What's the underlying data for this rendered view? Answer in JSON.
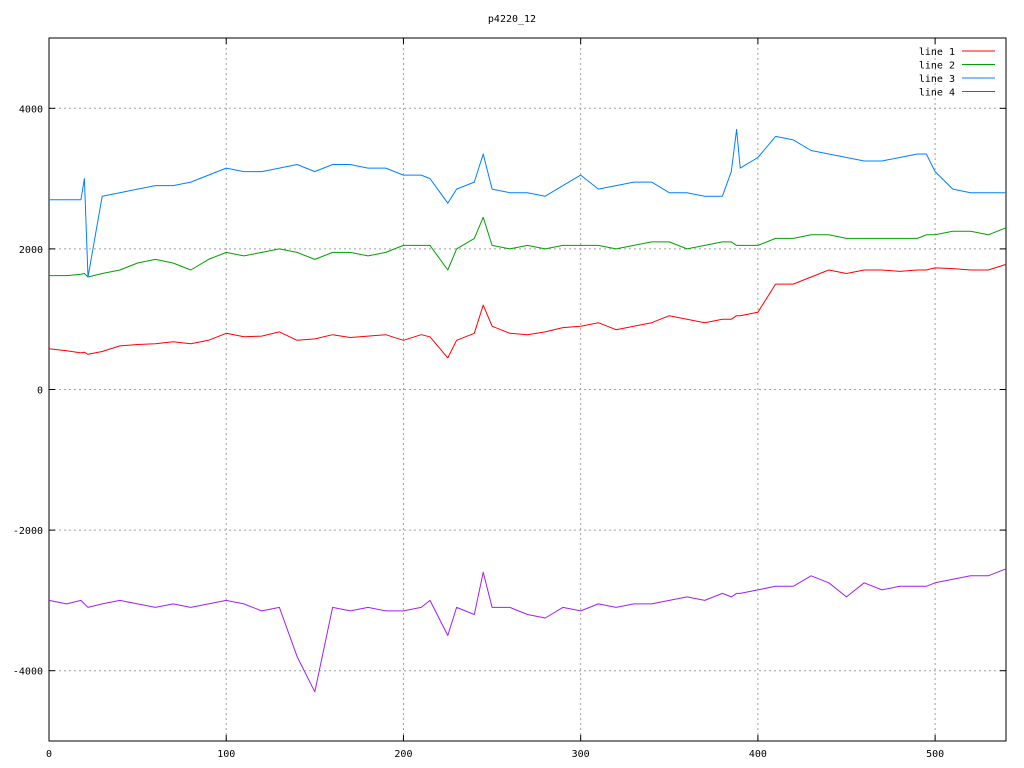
{
  "chart_data": {
    "type": "line",
    "title": "p4220_12",
    "xlabel": "",
    "ylabel": "",
    "xlim": [
      0,
      540
    ],
    "ylim": [
      -5000,
      5000
    ],
    "x_ticks": [
      0,
      100,
      200,
      300,
      400,
      500
    ],
    "y_ticks": [
      -4000,
      -2000,
      0,
      2000,
      4000
    ],
    "y_tick_labels": [
      "-4000",
      "-2000",
      "0",
      "2000",
      "4000"
    ],
    "grid": true,
    "legend_position": "top-right",
    "x": [
      0,
      10,
      18,
      20,
      22,
      30,
      40,
      50,
      60,
      70,
      80,
      90,
      100,
      110,
      120,
      130,
      140,
      150,
      160,
      170,
      180,
      190,
      200,
      210,
      215,
      225,
      230,
      240,
      245,
      250,
      260,
      270,
      280,
      290,
      300,
      310,
      320,
      330,
      340,
      350,
      360,
      370,
      380,
      385,
      388,
      390,
      400,
      410,
      420,
      430,
      440,
      450,
      460,
      470,
      480,
      490,
      495,
      500,
      510,
      520,
      530,
      540
    ],
    "series": [
      {
        "name": "line 1",
        "color": "#ff0000",
        "values": [
          580,
          550,
          520,
          530,
          500,
          540,
          620,
          640,
          650,
          680,
          650,
          700,
          800,
          750,
          760,
          820,
          700,
          720,
          780,
          740,
          760,
          780,
          700,
          780,
          750,
          450,
          700,
          800,
          1200,
          900,
          800,
          780,
          820,
          880,
          900,
          950,
          850,
          900,
          950,
          1050,
          1000,
          950,
          1000,
          1000,
          1050,
          1050,
          1100,
          1500,
          1500,
          1600,
          1700,
          1650,
          1700,
          1700,
          1680,
          1700,
          1700,
          1730,
          1720,
          1700,
          1700,
          1780
        ]
      },
      {
        "name": "line 2",
        "color": "#00a000",
        "values": [
          1620,
          1620,
          1640,
          1650,
          1600,
          1650,
          1700,
          1800,
          1850,
          1800,
          1700,
          1850,
          1950,
          1900,
          1950,
          2000,
          1950,
          1850,
          1950,
          1950,
          1900,
          1950,
          2050,
          2050,
          2050,
          1700,
          2000,
          2150,
          2450,
          2050,
          2000,
          2050,
          2000,
          2050,
          2050,
          2050,
          2000,
          2050,
          2100,
          2100,
          2000,
          2050,
          2100,
          2100,
          2050,
          2050,
          2050,
          2150,
          2150,
          2200,
          2200,
          2150,
          2150,
          2150,
          2150,
          2150,
          2200,
          2200,
          2250,
          2250,
          2200,
          2300
        ]
      },
      {
        "name": "line 3",
        "color": "#0080ff",
        "values": [
          2700,
          2700,
          2700,
          3000,
          1600,
          2750,
          2800,
          2850,
          2900,
          2900,
          2950,
          3050,
          3150,
          3100,
          3100,
          3150,
          3200,
          3100,
          3200,
          3200,
          3150,
          3150,
          3050,
          3050,
          3000,
          2650,
          2850,
          2950,
          3350,
          2850,
          2800,
          2800,
          2750,
          2900,
          3050,
          2850,
          2900,
          2950,
          2950,
          2800,
          2800,
          2750,
          2750,
          3100,
          3700,
          3150,
          3300,
          3600,
          3550,
          3400,
          3350,
          3300,
          3250,
          3250,
          3300,
          3350,
          3350,
          3100,
          2850,
          2800,
          2800,
          2800
        ]
      },
      {
        "name": "line 4",
        "color": "#a020f0",
        "values": [
          -3000,
          -3050,
          -3000,
          -3050,
          -3100,
          -3050,
          -3000,
          -3050,
          -3100,
          -3050,
          -3100,
          -3050,
          -3000,
          -3050,
          -3150,
          -3100,
          -3800,
          -4300,
          -3100,
          -3150,
          -3100,
          -3150,
          -3150,
          -3100,
          -3000,
          -3500,
          -3100,
          -3200,
          -2600,
          -3100,
          -3100,
          -3200,
          -3250,
          -3100,
          -3150,
          -3050,
          -3100,
          -3050,
          -3050,
          -3000,
          -2950,
          -3000,
          -2900,
          -2950,
          -2900,
          -2900,
          -2850,
          -2800,
          -2800,
          -2650,
          -2750,
          -2950,
          -2750,
          -2850,
          -2800,
          -2800,
          -2800,
          -2750,
          -2700,
          -2650,
          -2650,
          -2550
        ]
      }
    ]
  }
}
